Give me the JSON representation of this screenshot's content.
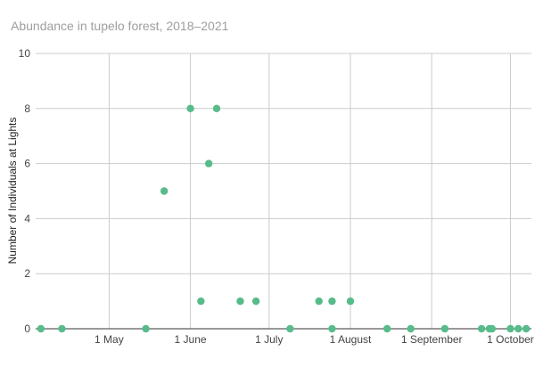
{
  "chart_data": {
    "type": "scatter",
    "title": "Abundance in tupelo forest, 2018–2021",
    "xlabel": "",
    "ylabel": "Number of Individuals at Lights",
    "x_type": "date",
    "xlim": [
      "2021-04-03",
      "2021-10-09"
    ],
    "ylim": [
      0,
      10
    ],
    "x_ticks": [
      {
        "date": "2021-05-01",
        "label": "1 May"
      },
      {
        "date": "2021-06-01",
        "label": "1 June"
      },
      {
        "date": "2021-07-01",
        "label": "1 July"
      },
      {
        "date": "2021-08-01",
        "label": "1 August"
      },
      {
        "date": "2021-09-01",
        "label": "1 September"
      },
      {
        "date": "2021-10-01",
        "label": "1 October"
      }
    ],
    "y_ticks": [
      0,
      2,
      4,
      6,
      8,
      10
    ],
    "grid": true,
    "legend": "none",
    "point_color": "#57bb8a",
    "points": [
      {
        "x": "2021-04-05",
        "y": 0
      },
      {
        "x": "2021-04-13",
        "y": 0
      },
      {
        "x": "2021-05-15",
        "y": 0
      },
      {
        "x": "2021-05-22",
        "y": 5
      },
      {
        "x": "2021-06-01",
        "y": 8
      },
      {
        "x": "2021-06-05",
        "y": 1
      },
      {
        "x": "2021-06-08",
        "y": 6
      },
      {
        "x": "2021-06-11",
        "y": 8
      },
      {
        "x": "2021-06-20",
        "y": 1
      },
      {
        "x": "2021-06-26",
        "y": 1
      },
      {
        "x": "2021-07-09",
        "y": 0
      },
      {
        "x": "2021-07-20",
        "y": 1
      },
      {
        "x": "2021-07-25",
        "y": 1
      },
      {
        "x": "2021-07-25",
        "y": 0
      },
      {
        "x": "2021-08-01",
        "y": 1
      },
      {
        "x": "2021-08-15",
        "y": 0
      },
      {
        "x": "2021-08-24",
        "y": 0
      },
      {
        "x": "2021-09-06",
        "y": 0
      },
      {
        "x": "2021-09-20",
        "y": 0
      },
      {
        "x": "2021-09-23",
        "y": 0
      },
      {
        "x": "2021-09-24",
        "y": 0
      },
      {
        "x": "2021-10-01",
        "y": 0
      },
      {
        "x": "2021-10-04",
        "y": 0
      },
      {
        "x": "2021-10-07",
        "y": 0
      }
    ]
  }
}
